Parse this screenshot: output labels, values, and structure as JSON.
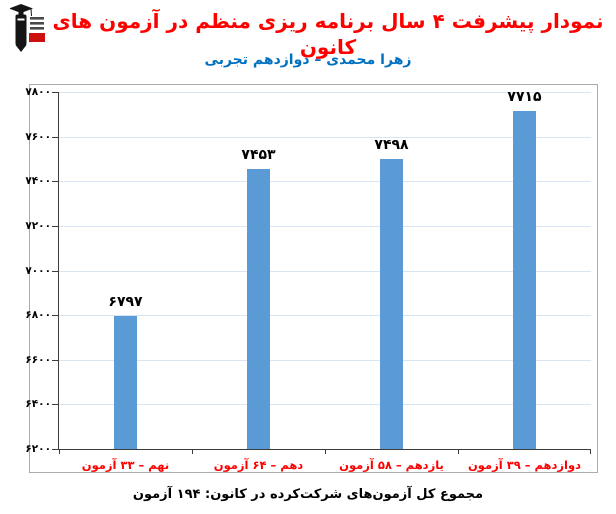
{
  "header": {
    "title": "نمودار پیشرفت ۴ سال برنامه ریزی منظم در آزمون های کانون",
    "subtitle": "زهرا محمدی – دوازدهم تجربی",
    "title_color": "#ff0000",
    "subtitle_color": "#0070C0",
    "logo_icon": "kanoon-graduate-pencil-logo"
  },
  "footer": {
    "caption": "مجموع کل آزمون‌های شرکت‌کرده در کانون:  ۱۹۴ آزمون",
    "total_exams": 194
  },
  "chart_data": {
    "type": "bar",
    "title": "نمودار پیشرفت ۴ سال برنامه ریزی منظم در آزمون های کانون",
    "subtitle": "زهرا محمدی – دوازدهم تجربی",
    "categories": [
      "نهم – ۳۳ آزمون",
      "دهم – ۶۴ آزمون",
      "یازدهم – ۵۸ آزمون",
      "دوازدهم – ۳۹ آزمون"
    ],
    "exam_counts": [
      33,
      64,
      58,
      39
    ],
    "values": [
      6797,
      7453,
      7498,
      7715
    ],
    "value_labels": [
      "۶۷۹۷",
      "۷۴۵۳",
      "۷۴۹۸",
      "۷۷۱۵"
    ],
    "ylim": [
      6200,
      7800
    ],
    "y_step": 200,
    "y_tick_labels": [
      "۶۲۰۰",
      "۶۴۰۰",
      "۶۶۰۰",
      "۶۸۰۰",
      "۷۰۰۰",
      "۷۲۰۰",
      "۷۴۰۰",
      "۷۶۰۰",
      "۷۸۰۰"
    ],
    "grid": true,
    "legend": false,
    "bar_color": "#5B9BD5",
    "gridline_color": "#d9e5f2",
    "axis_color": "#3c3c3c",
    "xlabel_color": "#ff0000"
  }
}
